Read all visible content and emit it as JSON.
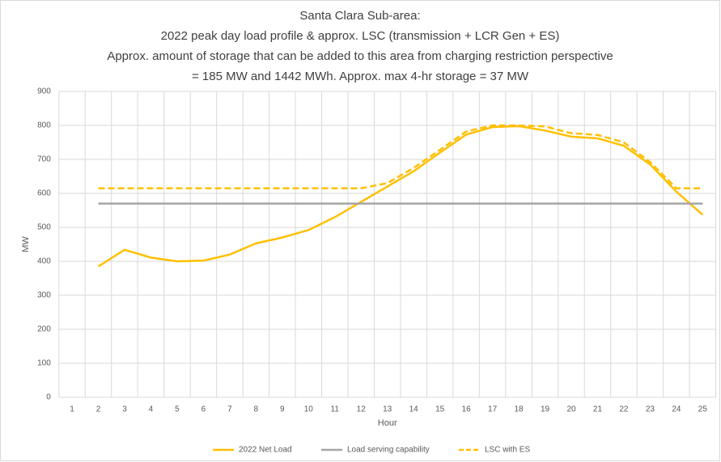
{
  "chart_data": {
    "type": "line",
    "title": [
      "Santa Clara Sub-area:",
      "2022 peak day load profile & approx. LSC (transmission + LCR Gen + ES)",
      "Approx. amount of storage that can be added to this area from charging restriction perspective",
      "= 185 MW and 1442 MWh. Approx. max 4-hr storage = 37 MW"
    ],
    "x_label": "Hour",
    "y_label": "MW",
    "categories": [
      1,
      2,
      3,
      4,
      5,
      6,
      7,
      8,
      9,
      10,
      11,
      12,
      13,
      14,
      15,
      16,
      17,
      18,
      19,
      20,
      21,
      22,
      23,
      24,
      25
    ],
    "series": [
      {
        "name": "2022 Net Load",
        "color": "#ffc000",
        "dash": false,
        "values": [
          null,
          385,
          434,
          411,
          400,
          402,
          420,
          453,
          470,
          492,
          530,
          575,
          620,
          665,
          720,
          773,
          795,
          798,
          785,
          767,
          762,
          740,
          685,
          605,
          537
        ]
      },
      {
        "name": "Load serving capability",
        "color": "#a5a5a5",
        "dash": false,
        "values": [
          null,
          570,
          570,
          570,
          570,
          570,
          570,
          570,
          570,
          570,
          570,
          570,
          570,
          570,
          570,
          570,
          570,
          570,
          570,
          570,
          570,
          570,
          570,
          570,
          570
        ]
      },
      {
        "name": "LSC with ES",
        "color": "#ffc000",
        "dash": true,
        "values": [
          null,
          615,
          615,
          615,
          615,
          615,
          615,
          615,
          615,
          615,
          615,
          615,
          630,
          675,
          728,
          782,
          800,
          800,
          797,
          777,
          772,
          750,
          692,
          615,
          615
        ]
      }
    ],
    "ylim": [
      0,
      900
    ],
    "yticks": [
      0,
      100,
      200,
      300,
      400,
      500,
      600,
      700,
      800,
      900
    ],
    "grid": true,
    "legend": "bottom"
  }
}
